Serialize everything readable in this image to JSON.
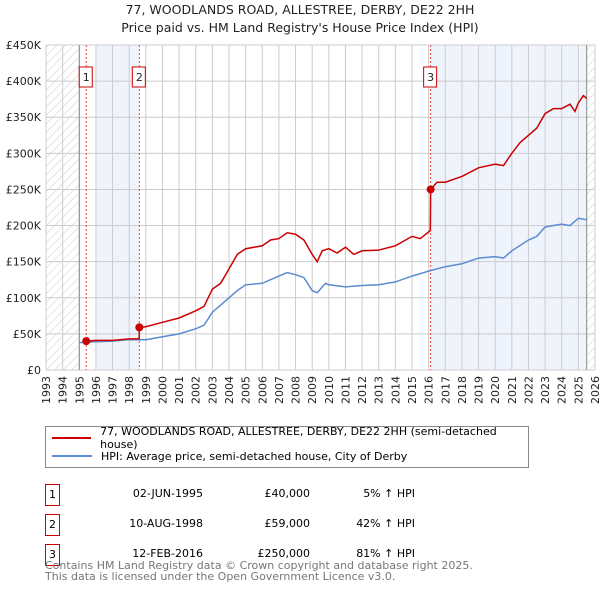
{
  "title": "77, WOODLANDS ROAD, ALLESTREE, DERBY, DE22 2HH",
  "subtitle": "Price paid vs. HM Land Registry's House Price Index (HPI)",
  "chart_data": {
    "type": "line",
    "title": "77, WOODLANDS ROAD, ALLESTREE, DERBY, DE22 2HH",
    "xlim": [
      1993,
      2026
    ],
    "ylim": [
      0,
      450000
    ],
    "y_ticks": [
      0,
      50000,
      100000,
      150000,
      200000,
      250000,
      300000,
      350000,
      400000,
      450000
    ],
    "y_tick_labels": [
      "£0",
      "£50K",
      "£100K",
      "£150K",
      "£200K",
      "£250K",
      "£300K",
      "£350K",
      "£400K",
      "£450K"
    ],
    "x_ticks": [
      "1993",
      "1994",
      "1995",
      "1996",
      "1997",
      "1998",
      "1999",
      "2000",
      "2001",
      "2002",
      "2003",
      "2004",
      "2005",
      "2006",
      "2007",
      "2008",
      "2009",
      "2010",
      "2011",
      "2012",
      "2013",
      "2014",
      "2015",
      "2016",
      "2017",
      "2018",
      "2019",
      "2020",
      "2021",
      "2022",
      "2023",
      "2024",
      "2025",
      "2026"
    ],
    "grid": true,
    "series": [
      {
        "name": "77, WOODLANDS ROAD, ALLESTREE, DERBY, DE22 2HH (semi-detached house)",
        "color": "#cc0000",
        "x": [
          1995.42,
          1996,
          1997,
          1998,
          1998.6,
          1998.61,
          1999,
          2000,
          2001,
          2002,
          2002.5,
          2003,
          2003.5,
          2004,
          2004.5,
          2005,
          2006,
          2006.5,
          2007,
          2007.5,
          2008,
          2008.5,
          2009,
          2009.3,
          2009.6,
          2010,
          2010.5,
          2011,
          2011.5,
          2012,
          2013,
          2014,
          2015,
          2015.5,
          2016.1,
          2016.12,
          2016.5,
          2017,
          2018,
          2019,
          2020,
          2020.5,
          2021,
          2021.5,
          2022,
          2022.5,
          2023,
          2023.5,
          2024,
          2024.5,
          2024.8,
          2025,
          2025.3,
          2025.5
        ],
        "y": [
          40000,
          41000,
          41000,
          43000,
          43000,
          59000,
          60000,
          66000,
          72000,
          82000,
          88000,
          112000,
          120000,
          140000,
          160000,
          168000,
          172000,
          180000,
          182000,
          190000,
          188000,
          180000,
          160000,
          150000,
          165000,
          168000,
          162000,
          170000,
          160000,
          165000,
          166000,
          172000,
          185000,
          182000,
          193000,
          250000,
          260000,
          260000,
          268000,
          280000,
          285000,
          283000,
          300000,
          315000,
          325000,
          335000,
          355000,
          362000,
          362000,
          368000,
          358000,
          370000,
          380000,
          376000
        ]
      },
      {
        "name": "HPI: Average price, semi-detached house, City of Derby",
        "color": "#5b8bd0",
        "x": [
          1995,
          1996,
          1997,
          1998,
          1999,
          2000,
          2001,
          2002,
          2002.5,
          2003,
          2004,
          2004.5,
          2005,
          2006,
          2007,
          2007.5,
          2008,
          2008.5,
          2009,
          2009.3,
          2009.8,
          2010,
          2011,
          2012,
          2013,
          2014,
          2015,
          2016,
          2017,
          2018,
          2019,
          2020,
          2020.5,
          2021,
          2022,
          2022.5,
          2023,
          2024,
          2024.5,
          2025,
          2025.5
        ],
        "y": [
          38000,
          39000,
          40000,
          42000,
          42000,
          46000,
          50000,
          57000,
          62000,
          80000,
          100000,
          110000,
          118000,
          120000,
          130000,
          135000,
          132000,
          128000,
          110000,
          107000,
          120000,
          118000,
          115000,
          117000,
          118000,
          122000,
          130000,
          137000,
          143000,
          147000,
          155000,
          157000,
          155000,
          165000,
          180000,
          185000,
          198000,
          202000,
          200000,
          210000,
          208000
        ]
      }
    ],
    "sales": [
      {
        "label": "1",
        "x": 1995.42,
        "y": 40000
      },
      {
        "label": "2",
        "x": 1998.61,
        "y": 59000
      },
      {
        "label": "3",
        "x": 2016.12,
        "y": 250000
      }
    ],
    "legend": "below"
  },
  "legend": {
    "property": "77, WOODLANDS ROAD, ALLESTREE, DERBY, DE22 2HH (semi-detached house)",
    "hpi": "HPI: Average price, semi-detached house, City of Derby"
  },
  "transactions": [
    {
      "num": "1",
      "date": "02-JUN-1995",
      "price": "£40,000",
      "hpi": "5% ↑ HPI"
    },
    {
      "num": "2",
      "date": "10-AUG-1998",
      "price": "£59,000",
      "hpi": "42% ↑ HPI"
    },
    {
      "num": "3",
      "date": "12-FEB-2016",
      "price": "£250,000",
      "hpi": "81% ↑ HPI"
    }
  ],
  "footer": {
    "line1": "Contains HM Land Registry data © Crown copyright and database right 2025.",
    "line2": "This data is licensed under the Open Government Licence v3.0."
  }
}
